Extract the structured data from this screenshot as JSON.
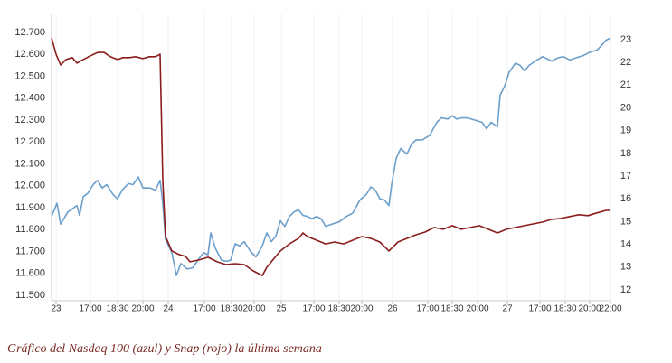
{
  "chart_data": {
    "type": "line",
    "caption": "Gráfico del Nasdaq 100 (azul) y Snap (rojo) la última semana",
    "xlim": [
      0,
      618
    ],
    "xticks": [
      {
        "value": 5,
        "label": "23"
      },
      {
        "value": 43,
        "label": "17:00"
      },
      {
        "value": 73,
        "label": "18:30"
      },
      {
        "value": 101,
        "label": "20:00"
      },
      {
        "value": 129,
        "label": "24"
      },
      {
        "value": 169,
        "label": "17:00"
      },
      {
        "value": 199,
        "label": "18:30"
      },
      {
        "value": 224,
        "label": "20:00"
      },
      {
        "value": 254,
        "label": "25"
      },
      {
        "value": 290,
        "label": "17:00"
      },
      {
        "value": 318,
        "label": "18:30"
      },
      {
        "value": 343,
        "label": "20:00"
      },
      {
        "value": 377,
        "label": "26"
      },
      {
        "value": 416,
        "label": "17:00"
      },
      {
        "value": 443,
        "label": "18:30"
      },
      {
        "value": 471,
        "label": "20:00"
      },
      {
        "value": 504,
        "label": "27"
      },
      {
        "value": 540,
        "label": "17:00"
      },
      {
        "value": 568,
        "label": "18:30"
      },
      {
        "value": 595,
        "label": "20:00"
      },
      {
        "value": 618,
        "label": "22:00"
      }
    ],
    "ylim": [
      11475,
      12787
    ],
    "yticks": [
      {
        "value": 11500,
        "label": "11.500"
      },
      {
        "value": 11600,
        "label": "11.600"
      },
      {
        "value": 11700,
        "label": "11.700"
      },
      {
        "value": 11800,
        "label": "11.800"
      },
      {
        "value": 11900,
        "label": "11.900"
      },
      {
        "value": 12000,
        "label": "12.000"
      },
      {
        "value": 12100,
        "label": "12.100"
      },
      {
        "value": 12200,
        "label": "12.200"
      },
      {
        "value": 12300,
        "label": "12.300"
      },
      {
        "value": 12400,
        "label": "12.400"
      },
      {
        "value": 12500,
        "label": "12.500"
      },
      {
        "value": 12600,
        "label": "12.600"
      },
      {
        "value": 12700,
        "label": "12.700"
      }
    ],
    "y2lim": [
      11.52,
      24.15
    ],
    "y2ticks": [
      12,
      13,
      14,
      15,
      16,
      17,
      18,
      19,
      20,
      21,
      22,
      23
    ],
    "series": [
      {
        "color": "#6b9fcc",
        "axis": "y",
        "x": [
          0,
          6,
          10,
          18,
          28,
          31,
          35,
          40,
          46,
          51,
          56,
          61,
          68,
          73,
          78,
          85,
          90,
          96,
          101,
          109,
          115,
          120,
          123,
          126,
          133,
          138,
          143,
          150,
          156,
          161,
          168,
          173,
          176,
          181,
          188,
          193,
          198,
          203,
          208,
          213,
          220,
          226,
          233,
          238,
          243,
          248,
          253,
          258,
          263,
          268,
          273,
          278,
          283,
          288,
          293,
          298,
          303,
          310,
          318,
          326,
          333,
          341,
          348,
          353,
          358,
          363,
          368,
          373,
          376,
          381,
          386,
          393,
          398,
          403,
          410,
          418,
          426,
          431,
          438,
          443,
          448,
          453,
          460,
          468,
          476,
          481,
          486,
          493,
          496,
          501,
          506,
          513,
          518,
          523,
          528,
          535,
          543,
          548,
          553,
          560,
          566,
          573,
          580,
          588,
          595,
          603,
          608,
          613,
          618
        ],
        "values": [
          11860,
          11920,
          11825,
          11880,
          11910,
          11865,
          11950,
          11965,
          12005,
          12025,
          11990,
          12005,
          11960,
          11940,
          11980,
          12010,
          12005,
          12040,
          11990,
          11990,
          11980,
          12025,
          11920,
          11755,
          11695,
          11590,
          11645,
          11620,
          11625,
          11655,
          11695,
          11685,
          11785,
          11715,
          11660,
          11655,
          11660,
          11735,
          11725,
          11745,
          11700,
          11675,
          11725,
          11785,
          11745,
          11770,
          11840,
          11815,
          11860,
          11880,
          11890,
          11865,
          11860,
          11850,
          11860,
          11850,
          11815,
          11825,
          11835,
          11860,
          11875,
          11935,
          11960,
          11995,
          11980,
          11940,
          11935,
          11910,
          12005,
          12125,
          12170,
          12145,
          12190,
          12210,
          12210,
          12230,
          12290,
          12310,
          12305,
          12320,
          12305,
          12310,
          12310,
          12300,
          12290,
          12260,
          12290,
          12270,
          12415,
          12455,
          12520,
          12560,
          12550,
          12525,
          12550,
          12570,
          12590,
          12580,
          12570,
          12585,
          12590,
          12575,
          12585,
          12595,
          12610,
          12620,
          12640,
          12665,
          12675
        ]
      },
      {
        "color": "#8b1c1c",
        "axis": "y2",
        "x": [
          0,
          5,
          10,
          16,
          23,
          28,
          35,
          43,
          51,
          58,
          65,
          73,
          79,
          86,
          93,
          101,
          108,
          115,
          120,
          123,
          126,
          133,
          141,
          148,
          153,
          163,
          173,
          183,
          193,
          203,
          213,
          223,
          233,
          238,
          243,
          253,
          263,
          273,
          278,
          283,
          293,
          303,
          313,
          323,
          333,
          343,
          353,
          363,
          373,
          383,
          393,
          403,
          413,
          423,
          433,
          443,
          453,
          463,
          473,
          483,
          493,
          503,
          513,
          523,
          533,
          543,
          553,
          563,
          573,
          583,
          593,
          603,
          613,
          618
        ],
        "values": [
          23.08,
          22.36,
          21.89,
          22.13,
          22.21,
          21.97,
          22.13,
          22.29,
          22.44,
          22.44,
          22.25,
          22.13,
          22.21,
          22.21,
          22.25,
          22.17,
          22.25,
          22.25,
          22.36,
          16.8,
          14.34,
          13.71,
          13.55,
          13.47,
          13.23,
          13.31,
          13.43,
          13.23,
          13.11,
          13.15,
          13.11,
          12.83,
          12.63,
          12.99,
          13.23,
          13.71,
          14.02,
          14.26,
          14.5,
          14.34,
          14.18,
          14.02,
          14.1,
          14.02,
          14.18,
          14.34,
          14.26,
          14.1,
          13.71,
          14.1,
          14.26,
          14.42,
          14.54,
          14.74,
          14.66,
          14.82,
          14.66,
          14.74,
          14.82,
          14.66,
          14.5,
          14.66,
          14.74,
          14.82,
          14.9,
          14.98,
          15.1,
          15.14,
          15.22,
          15.3,
          15.26,
          15.38,
          15.49,
          15.49
        ]
      }
    ]
  }
}
